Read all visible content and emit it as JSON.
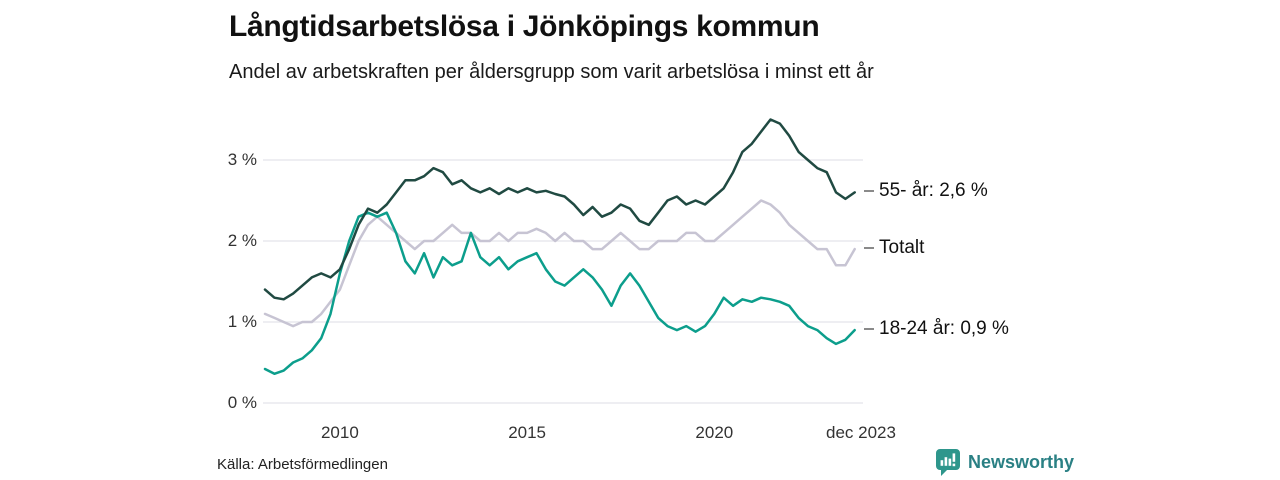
{
  "header": {
    "title": "Långtidsarbetslösa i Jönköpings kommun",
    "subtitle": "Andel av arbetskraften per åldersgrupp som varit arbetslösa i minst ett år"
  },
  "footer": {
    "source": "Källa: Arbetsförmedlingen",
    "brand_name": "Newsworthy",
    "brand_icon": "bar-chart-speech-bubble-icon",
    "brand_text_color": "#2a8084",
    "brand_icon_color": "#2e968c"
  },
  "chart_data": {
    "type": "line",
    "title": "Långtidsarbetslösa i Jönköpings kommun",
    "subtitle": "Andel av arbetskraften per åldersgrupp som varit arbetslösa i minst ett år",
    "x_unit": "year",
    "x_start": 2008.0,
    "x_end": 2023.917,
    "x_step": 0.25,
    "ylim": [
      0,
      3.6
    ],
    "grid": "horizontal",
    "gridline_color": "#e4e4e9",
    "legend_position": "right-of-line-ends",
    "yticks": [
      {
        "label": "0 %",
        "value": 0
      },
      {
        "label": "1 %",
        "value": 1
      },
      {
        "label": "2 %",
        "value": 2
      },
      {
        "label": "3 %",
        "value": 3
      }
    ],
    "xticks": [
      {
        "label": "2010",
        "x": 2010.0
      },
      {
        "label": "2015",
        "x": 2015.0
      },
      {
        "label": "2020",
        "x": 2020.0
      },
      {
        "label": "dec 2023",
        "x": 2023.917
      }
    ],
    "series": [
      {
        "name": "Totalt",
        "end_label": "Totalt",
        "end_value": 1.9,
        "color": "#c7c4d3",
        "values": [
          1.1,
          1.05,
          1.0,
          0.95,
          1.0,
          1.0,
          1.1,
          1.25,
          1.4,
          1.7,
          2.0,
          2.2,
          2.3,
          2.2,
          2.1,
          2.0,
          1.9,
          2.0,
          2.0,
          2.1,
          2.2,
          2.1,
          2.1,
          2.0,
          2.0,
          2.1,
          2.0,
          2.1,
          2.1,
          2.15,
          2.1,
          2.0,
          2.1,
          2.0,
          2.0,
          1.9,
          1.9,
          2.0,
          2.1,
          2.0,
          1.9,
          1.9,
          2.0,
          2.0,
          2.0,
          2.1,
          2.1,
          2.0,
          2.0,
          2.1,
          2.2,
          2.3,
          2.4,
          2.5,
          2.45,
          2.35,
          2.2,
          2.1,
          2.0,
          1.9,
          1.9,
          1.7,
          1.7,
          1.9
        ]
      },
      {
        "name": "18-24 år",
        "end_label": "18-24 år: 0,9 %",
        "end_value": 0.9,
        "color": "#0c9e8c",
        "values": [
          0.42,
          0.36,
          0.4,
          0.5,
          0.55,
          0.65,
          0.8,
          1.1,
          1.6,
          2.0,
          2.3,
          2.35,
          2.3,
          2.35,
          2.1,
          1.75,
          1.6,
          1.85,
          1.55,
          1.8,
          1.7,
          1.75,
          2.1,
          1.8,
          1.7,
          1.8,
          1.65,
          1.75,
          1.8,
          1.85,
          1.65,
          1.5,
          1.45,
          1.55,
          1.65,
          1.55,
          1.4,
          1.2,
          1.45,
          1.6,
          1.45,
          1.25,
          1.05,
          0.95,
          0.9,
          0.95,
          0.88,
          0.95,
          1.1,
          1.3,
          1.2,
          1.28,
          1.25,
          1.3,
          1.28,
          1.25,
          1.2,
          1.05,
          0.95,
          0.9,
          0.8,
          0.73,
          0.78,
          0.9
        ]
      },
      {
        "name": "55- år",
        "end_label": "55- år: 2,6 %",
        "end_value": 2.6,
        "color": "#204a42",
        "values": [
          1.4,
          1.3,
          1.28,
          1.35,
          1.45,
          1.55,
          1.6,
          1.55,
          1.65,
          1.9,
          2.2,
          2.4,
          2.35,
          2.45,
          2.6,
          2.75,
          2.75,
          2.8,
          2.9,
          2.85,
          2.7,
          2.75,
          2.65,
          2.6,
          2.65,
          2.58,
          2.65,
          2.6,
          2.65,
          2.6,
          2.62,
          2.58,
          2.55,
          2.45,
          2.32,
          2.42,
          2.3,
          2.35,
          2.45,
          2.4,
          2.25,
          2.2,
          2.35,
          2.5,
          2.55,
          2.45,
          2.5,
          2.45,
          2.55,
          2.65,
          2.85,
          3.1,
          3.2,
          3.35,
          3.5,
          3.45,
          3.3,
          3.1,
          3.0,
          2.9,
          2.85,
          2.6,
          2.52,
          2.6
        ]
      }
    ]
  }
}
